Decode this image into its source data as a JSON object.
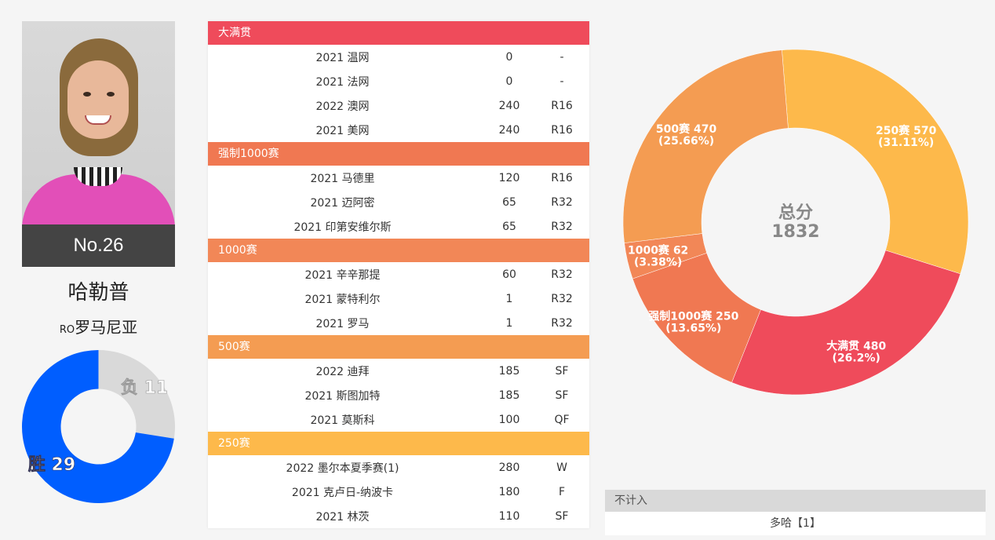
{
  "player": {
    "rank": "No.26",
    "name": "哈勒普",
    "country_code": "RO",
    "country": "罗马尼亚"
  },
  "win_loss": {
    "loss_label": "负 11",
    "win_label": "胜 29",
    "wins": 29,
    "losses": 11,
    "colors": {
      "win": "#005eff",
      "loss": "#d9d9d9"
    }
  },
  "sections": [
    {
      "title": "大满贯",
      "color": "#ef4b5b",
      "rows": [
        {
          "t": "2021 温网",
          "p": "0",
          "r": "-"
        },
        {
          "t": "2021 法网",
          "p": "0",
          "r": "-"
        },
        {
          "t": "2022 澳网",
          "p": "240",
          "r": "R16"
        },
        {
          "t": "2021 美网",
          "p": "240",
          "r": "R16"
        }
      ]
    },
    {
      "title": "强制1000赛",
      "color": "#f07852",
      "rows": [
        {
          "t": "2021 马德里",
          "p": "120",
          "r": "R16"
        },
        {
          "t": "2021 迈阿密",
          "p": "65",
          "r": "R32"
        },
        {
          "t": "2021 印第安维尔斯",
          "p": "65",
          "r": "R32"
        }
      ]
    },
    {
      "title": "1000赛",
      "color": "#f28757",
      "rows": [
        {
          "t": "2021 辛辛那提",
          "p": "60",
          "r": "R32"
        },
        {
          "t": "2021 蒙特利尔",
          "p": "1",
          "r": "R32"
        },
        {
          "t": "2021 罗马",
          "p": "1",
          "r": "R32"
        }
      ]
    },
    {
      "title": "500赛",
      "color": "#f49c52",
      "rows": [
        {
          "t": "2022 迪拜",
          "p": "185",
          "r": "SF"
        },
        {
          "t": "2021 斯图加特",
          "p": "185",
          "r": "SF"
        },
        {
          "t": "2021 莫斯科",
          "p": "100",
          "r": "QF"
        }
      ]
    },
    {
      "title": "250赛",
      "color": "#fdb94b",
      "rows": [
        {
          "t": "2022 墨尔本夏季赛(1)",
          "p": "280",
          "r": "W"
        },
        {
          "t": "2021 克卢日-纳波卡",
          "p": "180",
          "r": "F"
        },
        {
          "t": "2021 林茨",
          "p": "110",
          "r": "SF"
        }
      ]
    }
  ],
  "not_counted": {
    "header": "不计入",
    "value": "多哈【1】"
  },
  "chart_data": {
    "type": "pie",
    "center_label": "总分",
    "center_value": "1832",
    "slices": [
      {
        "name": "250赛",
        "value": 570,
        "pct": "31.11%",
        "color": "#fdb94b"
      },
      {
        "name": "大满贯",
        "value": 480,
        "pct": "26.2%",
        "color": "#ef4b5b"
      },
      {
        "name": "强制1000赛",
        "value": 250,
        "pct": "13.65%",
        "color": "#f07852"
      },
      {
        "name": "1000赛",
        "value": 62,
        "pct": "3.38%",
        "color": "#f28757"
      },
      {
        "name": "500赛",
        "value": 470,
        "pct": "25.66%",
        "color": "#f49c52"
      }
    ]
  }
}
